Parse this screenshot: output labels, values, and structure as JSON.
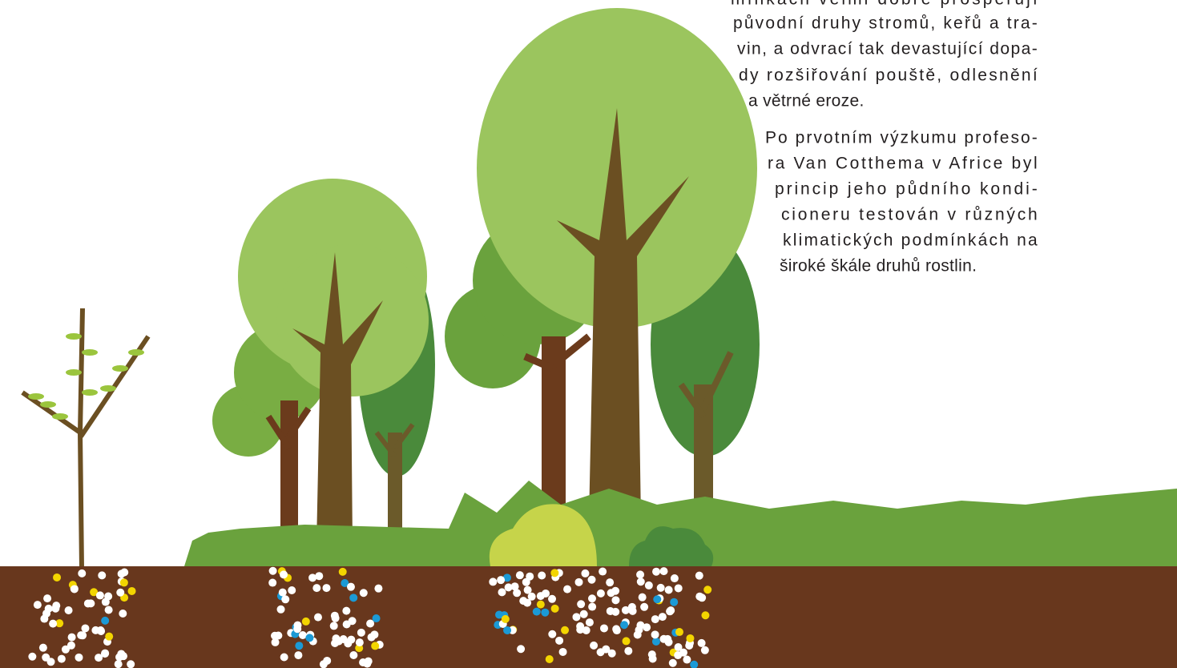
{
  "paragraphs": [
    {
      "lines": [
        "mínkách velmi dobře prosperují",
        "původní druhy stromů, keřů a tra-",
        "vin, a odvrací tak devastující dopa-",
        "dy rozšiřování pouště, odlesnění",
        "a větrné eroze."
      ]
    },
    {
      "lines": [
        "Po prvotním výzkumu profeso-",
        "ra Van Cotthema v Africe byl",
        "princip jeho půdního kondi-",
        "cioneru testován v různých",
        "klimatických podmínkách na",
        "široké škále druhů rostlin."
      ]
    }
  ]
}
